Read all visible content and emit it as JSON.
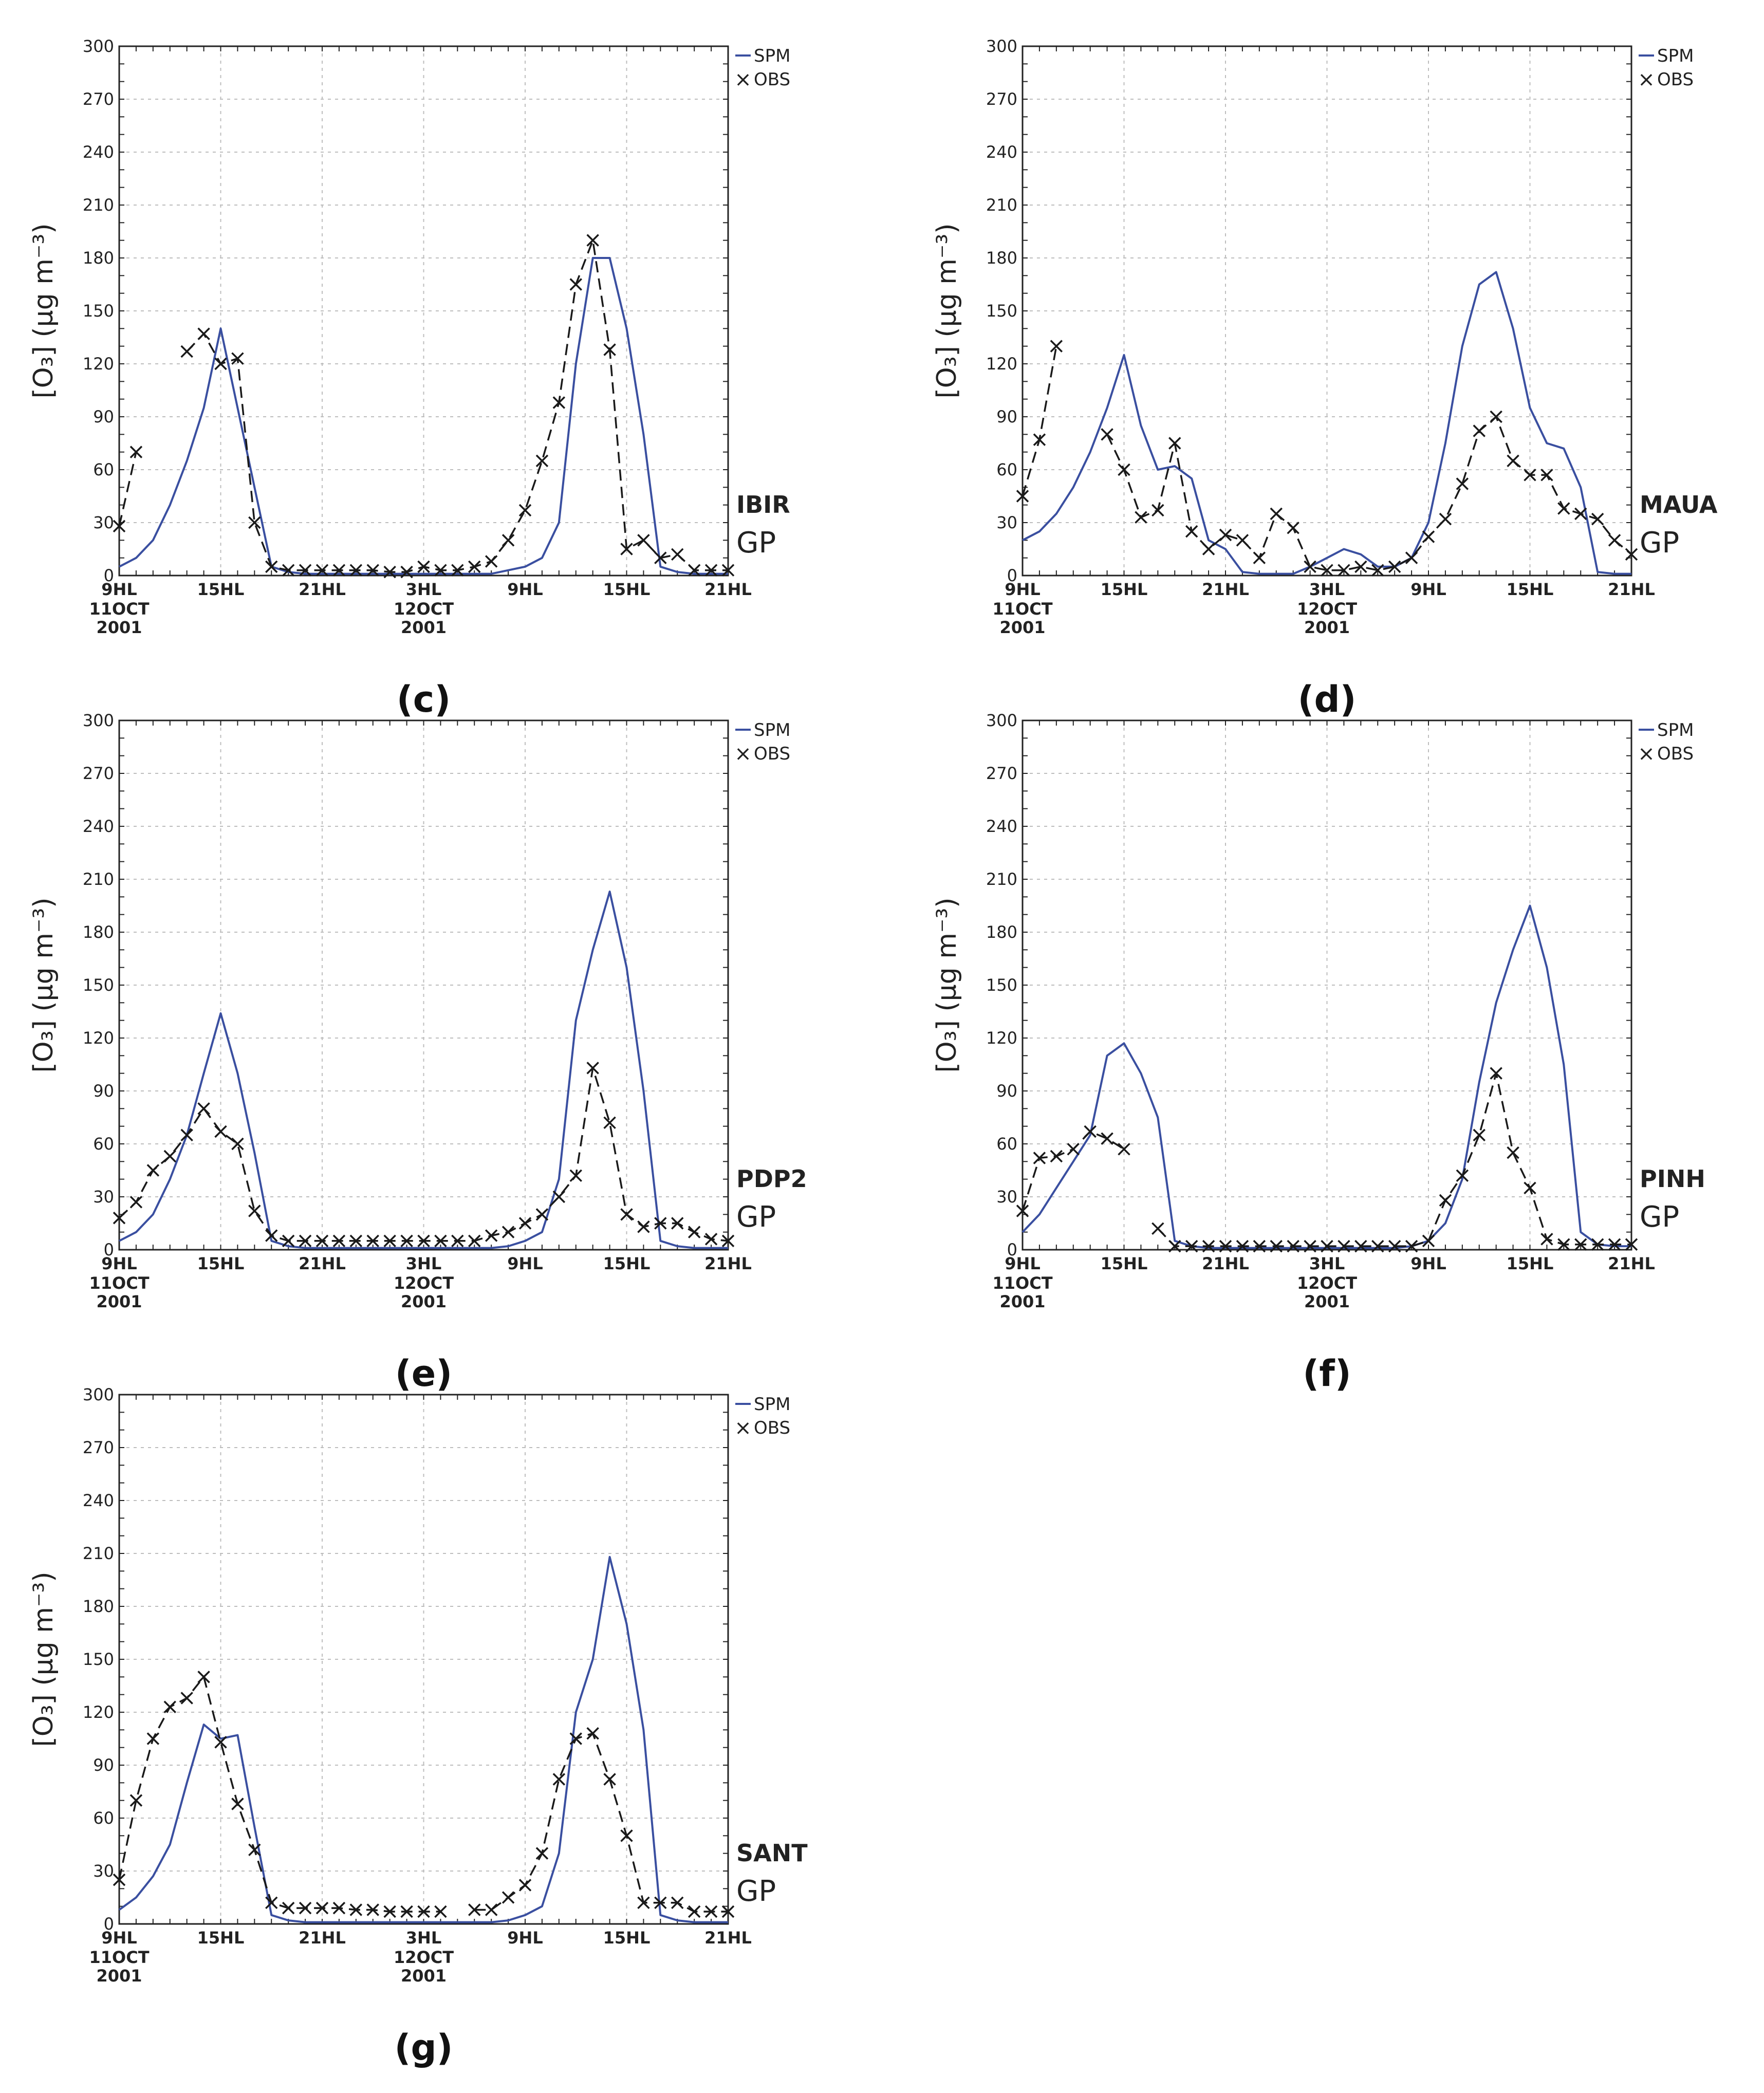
{
  "figure": {
    "legend": {
      "model_label": "SPM",
      "obs_label": "OBS",
      "obs_marker": "×"
    },
    "colors": {
      "model": "#3a4fa0",
      "obs": "#1a1a1a",
      "grid": "#bdbdbd",
      "frame": "#222222"
    },
    "ylabel": "[O₃] (μg m⁻³)",
    "x_ticks": [
      {
        "hour": 0,
        "label": "9HL",
        "sub": [
          "11OCT",
          "2001"
        ]
      },
      {
        "hour": 6,
        "label": "15HL",
        "sub": []
      },
      {
        "hour": 12,
        "label": "21HL",
        "sub": []
      },
      {
        "hour": 18,
        "label": "3HL",
        "sub": [
          "12OCT",
          "2001"
        ]
      },
      {
        "hour": 24,
        "label": "9HL",
        "sub": []
      },
      {
        "hour": 30,
        "label": "15HL",
        "sub": []
      },
      {
        "hour": 36,
        "label": "21HL",
        "sub": []
      }
    ],
    "y_ticks": [
      0,
      30,
      60,
      90,
      120,
      150,
      180,
      210,
      240,
      270,
      300
    ]
  },
  "chart_data": [
    {
      "type": "line",
      "panel_label": "c",
      "station": "IBIR",
      "region": "GP",
      "xlim": [
        0,
        36
      ],
      "ylim": [
        0,
        300
      ],
      "x_unit": "hours after 9HL 11 Oct 2001",
      "series": [
        {
          "name": "SPM",
          "x": [
            0,
            1,
            2,
            3,
            4,
            5,
            6,
            7,
            8,
            9,
            10,
            11,
            12,
            13,
            14,
            15,
            16,
            17,
            18,
            19,
            20,
            21,
            22,
            23,
            24,
            25,
            26,
            27,
            28,
            29,
            30,
            31,
            32,
            33,
            34,
            35,
            36
          ],
          "values": [
            5,
            10,
            20,
            40,
            65,
            95,
            140,
            95,
            50,
            5,
            2,
            1,
            1,
            1,
            1,
            1,
            1,
            1,
            1,
            1,
            1,
            1,
            1,
            3,
            5,
            10,
            30,
            120,
            180,
            180,
            140,
            80,
            5,
            2,
            1,
            1,
            1
          ]
        },
        {
          "name": "OBS",
          "x": [
            0,
            1,
            4,
            5,
            6,
            7,
            8,
            9,
            10,
            11,
            12,
            13,
            14,
            15,
            16,
            17,
            18,
            19,
            20,
            21,
            22,
            23,
            24,
            25,
            26,
            27,
            28,
            29,
            30,
            31,
            32,
            33,
            34,
            35,
            36
          ],
          "values": [
            28,
            70,
            127,
            137,
            120,
            123,
            30,
            5,
            3,
            3,
            3,
            3,
            3,
            3,
            2,
            2,
            5,
            3,
            3,
            5,
            8,
            20,
            37,
            65,
            98,
            165,
            190,
            128,
            15,
            20,
            10,
            12,
            3,
            3,
            3
          ]
        }
      ]
    },
    {
      "type": "line",
      "panel_label": "d",
      "station": "MAUA",
      "region": "GP",
      "xlim": [
        0,
        36
      ],
      "ylim": [
        0,
        300
      ],
      "x_unit": "hours after 9HL 11 Oct 2001",
      "series": [
        {
          "name": "SPM",
          "x": [
            0,
            1,
            2,
            3,
            4,
            5,
            6,
            7,
            8,
            9,
            10,
            11,
            12,
            13,
            14,
            15,
            16,
            17,
            18,
            19,
            20,
            21,
            22,
            23,
            24,
            25,
            26,
            27,
            28,
            29,
            30,
            31,
            32,
            33,
            34,
            35,
            36
          ],
          "values": [
            20,
            25,
            35,
            50,
            70,
            95,
            125,
            85,
            60,
            62,
            55,
            20,
            15,
            2,
            1,
            1,
            1,
            5,
            10,
            15,
            12,
            5,
            5,
            10,
            30,
            75,
            130,
            165,
            172,
            140,
            95,
            75,
            72,
            50,
            2,
            1,
            1
          ]
        },
        {
          "name": "OBS",
          "x": [
            0,
            1,
            2,
            5,
            6,
            7,
            8,
            9,
            10,
            11,
            12,
            13,
            14,
            15,
            16,
            17,
            18,
            19,
            20,
            21,
            22,
            23,
            24,
            25,
            26,
            27,
            28,
            29,
            30,
            31,
            32,
            33,
            34,
            35,
            36
          ],
          "values": [
            45,
            77,
            130,
            80,
            60,
            33,
            37,
            75,
            25,
            15,
            23,
            20,
            10,
            35,
            27,
            5,
            3,
            3,
            5,
            3,
            5,
            10,
            22,
            32,
            52,
            82,
            90,
            65,
            57,
            57,
            38,
            35,
            32,
            20,
            12
          ]
        }
      ]
    },
    {
      "type": "line",
      "panel_label": "e",
      "station": "PDP2",
      "region": "GP",
      "xlim": [
        0,
        36
      ],
      "ylim": [
        0,
        300
      ],
      "x_unit": "hours after 9HL 11 Oct 2001",
      "series": [
        {
          "name": "SPM",
          "x": [
            0,
            1,
            2,
            3,
            4,
            5,
            6,
            7,
            8,
            9,
            10,
            11,
            12,
            13,
            14,
            15,
            16,
            17,
            18,
            19,
            20,
            21,
            22,
            23,
            24,
            25,
            26,
            27,
            28,
            29,
            30,
            31,
            32,
            33,
            34,
            35,
            36
          ],
          "values": [
            5,
            10,
            20,
            40,
            65,
            100,
            134,
            100,
            55,
            5,
            2,
            1,
            1,
            1,
            1,
            1,
            1,
            1,
            1,
            1,
            1,
            1,
            1,
            2,
            5,
            10,
            40,
            130,
            170,
            203,
            160,
            90,
            5,
            2,
            1,
            1,
            1
          ]
        },
        {
          "name": "OBS",
          "x": [
            0,
            1,
            2,
            3,
            4,
            5,
            6,
            7,
            8,
            9,
            10,
            11,
            12,
            13,
            14,
            15,
            16,
            17,
            18,
            19,
            20,
            21,
            22,
            23,
            24,
            25,
            26,
            27,
            28,
            29,
            30,
            31,
            32,
            33,
            34,
            35,
            36
          ],
          "values": [
            18,
            27,
            45,
            53,
            65,
            80,
            67,
            60,
            22,
            8,
            5,
            5,
            5,
            5,
            5,
            5,
            5,
            5,
            5,
            5,
            5,
            5,
            8,
            10,
            15,
            20,
            30,
            42,
            103,
            72,
            20,
            13,
            15,
            15,
            10,
            6,
            5
          ]
        }
      ]
    },
    {
      "type": "line",
      "panel_label": "f",
      "station": "PINH",
      "region": "GP",
      "xlim": [
        0,
        36
      ],
      "ylim": [
        0,
        300
      ],
      "x_unit": "hours after 9HL 11 Oct 2001",
      "series": [
        {
          "name": "SPM",
          "x": [
            0,
            1,
            2,
            3,
            4,
            5,
            6,
            7,
            8,
            9,
            10,
            11,
            12,
            13,
            14,
            15,
            16,
            17,
            18,
            19,
            20,
            21,
            22,
            23,
            24,
            25,
            26,
            27,
            28,
            29,
            30,
            31,
            32,
            33,
            34,
            35,
            36
          ],
          "values": [
            10,
            20,
            35,
            50,
            65,
            110,
            117,
            100,
            75,
            5,
            2,
            1,
            1,
            1,
            1,
            1,
            1,
            1,
            1,
            1,
            1,
            1,
            1,
            2,
            5,
            15,
            40,
            95,
            140,
            170,
            195,
            160,
            105,
            10,
            3,
            2,
            2
          ]
        },
        {
          "name": "OBS",
          "x": [
            0,
            1,
            2,
            3,
            4,
            5,
            6,
            7,
            8,
            9,
            10,
            11,
            12,
            13,
            14,
            15,
            16,
            17,
            18,
            19,
            20,
            21,
            22,
            23,
            24,
            25,
            26,
            27,
            28,
            29,
            30,
            31,
            32,
            33,
            34,
            35,
            36
          ],
          "values": [
            22,
            52,
            53,
            57,
            67,
            63,
            57,
            null,
            12,
            2,
            2,
            2,
            2,
            2,
            2,
            2,
            2,
            2,
            2,
            2,
            2,
            2,
            2,
            2,
            5,
            28,
            42,
            65,
            100,
            55,
            35,
            6,
            3,
            3,
            3,
            3,
            3
          ]
        }
      ]
    },
    {
      "type": "line",
      "panel_label": "g",
      "station": "SANT",
      "region": "GP",
      "xlim": [
        0,
        36
      ],
      "ylim": [
        0,
        300
      ],
      "x_unit": "hours after 9HL 11 Oct 2001",
      "series": [
        {
          "name": "SPM",
          "x": [
            0,
            1,
            2,
            3,
            4,
            5,
            6,
            7,
            8,
            9,
            10,
            11,
            12,
            13,
            14,
            15,
            16,
            17,
            18,
            19,
            20,
            21,
            22,
            23,
            24,
            25,
            26,
            27,
            28,
            29,
            30,
            31,
            32,
            33,
            34,
            35,
            36
          ],
          "values": [
            8,
            15,
            27,
            45,
            80,
            113,
            105,
            107,
            55,
            5,
            2,
            1,
            1,
            1,
            1,
            1,
            1,
            1,
            1,
            1,
            1,
            1,
            1,
            2,
            5,
            10,
            40,
            120,
            150,
            208,
            170,
            110,
            5,
            2,
            1,
            1,
            1
          ]
        },
        {
          "name": "OBS",
          "x": [
            0,
            1,
            2,
            3,
            4,
            5,
            6,
            7,
            8,
            9,
            10,
            11,
            12,
            13,
            14,
            15,
            16,
            17,
            18,
            19,
            20,
            21,
            22,
            23,
            24,
            25,
            26,
            27,
            28,
            29,
            30,
            31,
            32,
            33,
            34,
            35,
            36
          ],
          "values": [
            25,
            70,
            105,
            123,
            128,
            140,
            103,
            68,
            42,
            12,
            9,
            9,
            9,
            9,
            8,
            8,
            7,
            7,
            7,
            7,
            null,
            8,
            8,
            15,
            22,
            40,
            82,
            105,
            108,
            82,
            50,
            12,
            12,
            12,
            7,
            7,
            7
          ]
        }
      ]
    }
  ]
}
